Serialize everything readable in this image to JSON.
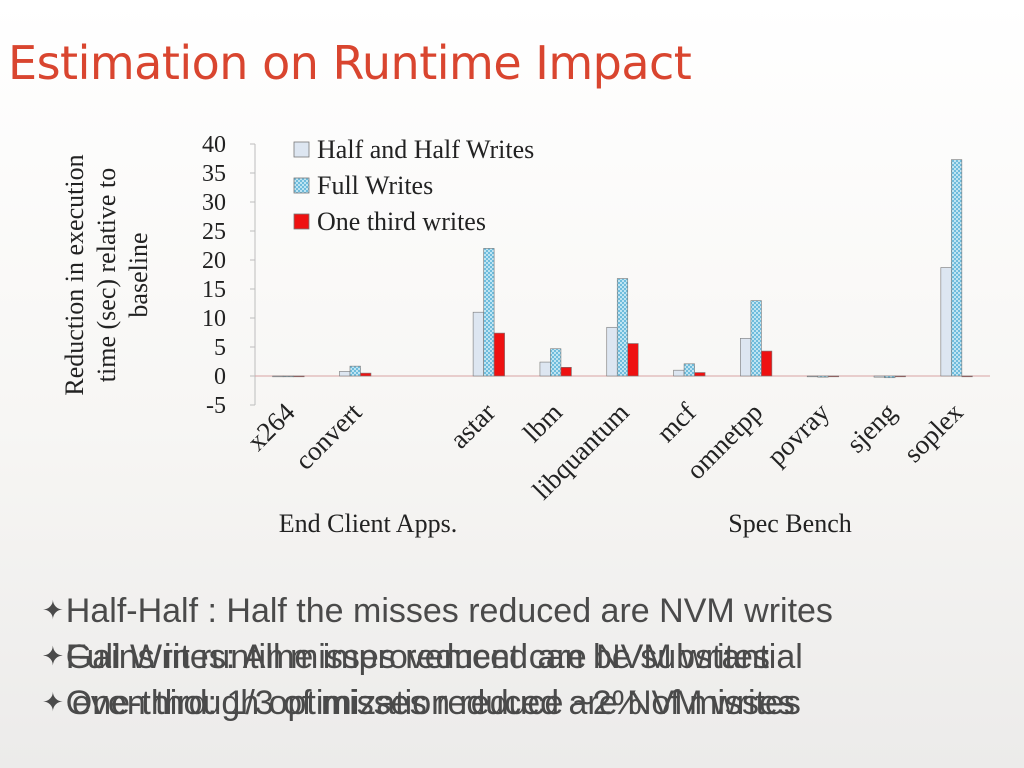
{
  "slide": {
    "title": "Estimation on Runtime Impact"
  },
  "chart_data": {
    "type": "bar",
    "ylabel": "Reduction in execution time (sec) relative to baseline",
    "ylabel_lines": [
      "Reduction in execution",
      "time (sec) relative to",
      "baseline"
    ],
    "ylim": [
      -5,
      40
    ],
    "yticks": [
      -5,
      0,
      5,
      10,
      15,
      20,
      25,
      30,
      35,
      40
    ],
    "grid": false,
    "legend_position": "top-left",
    "categories": [
      "x264",
      "convert",
      "",
      "astar",
      "lbm",
      "libquantum",
      "mcf",
      "omnetpp",
      "povray",
      "sjeng",
      "soplex"
    ],
    "series": [
      {
        "name": "Half and Half Writes",
        "pattern": "plain",
        "color": "#dde6f1",
        "values": [
          0,
          0.8,
          0,
          11.0,
          2.4,
          8.4,
          1.0,
          6.5,
          -0.1,
          -0.2,
          18.7
        ]
      },
      {
        "name": "Full Writes",
        "pattern": "checker",
        "color": "#9fd6ea",
        "values": [
          0,
          1.7,
          0,
          22.0,
          4.7,
          16.8,
          2.1,
          13.0,
          -0.2,
          -0.3,
          37.3
        ]
      },
      {
        "name": "One third writes",
        "pattern": "solid",
        "color": "#ee1111",
        "values": [
          0,
          0.5,
          0,
          7.4,
          1.5,
          5.6,
          0.6,
          4.3,
          0,
          -0.1,
          0
        ]
      }
    ],
    "group_labels": [
      "End Client Apps.",
      "Spec Bench"
    ]
  },
  "bullets": [
    {
      "mark": "✦",
      "text": "Half-Half : Half the misses reduced are NVM writes"
    },
    {
      "mark": "✦",
      "text": "Full Writes: All misses reduced are NVM writes"
    },
    {
      "mark": "✦",
      "text": "One-third: 1/3 of misses reduced are NVM writes"
    },
    {
      "mark": "✦",
      "text": "Gains in runtime improvement can be substantial"
    },
    {
      "mark": "",
      "text": "even though optimization reduce ~2% of misses"
    }
  ]
}
